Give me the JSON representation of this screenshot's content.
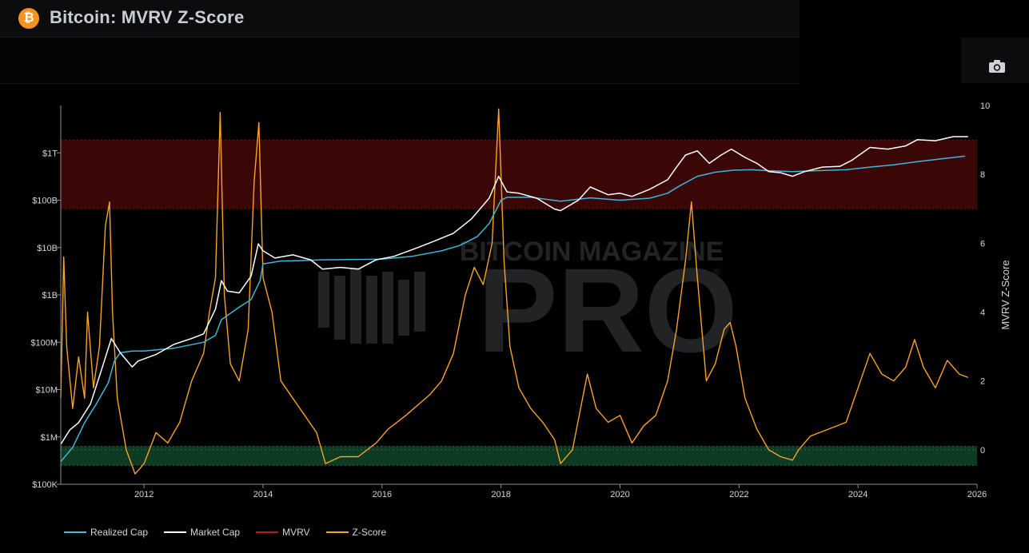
{
  "header": {
    "title": "Bitcoin: MVRV Z-Score",
    "logo_glyph": "₿",
    "logo_icon": "bitcoin-logo-icon",
    "camera_icon": "camera-icon"
  },
  "watermark": {
    "line1": "BITCOIN MAGAZINE",
    "line2": "PRO",
    "mark": "®"
  },
  "colors": {
    "realized": "#3fb7d8",
    "market": "#ffffff",
    "mvrv": "#b01e1e",
    "zscore": "#f7a229",
    "red_band": "#3a0606",
    "green_band": "#0d3a22"
  },
  "chart_data": {
    "type": "line",
    "title": "Bitcoin: MVRV Z-Score",
    "x_ticks": [
      "2012",
      "2014",
      "2016",
      "2018",
      "2020",
      "2022",
      "2024",
      "2026"
    ],
    "x_range": [
      2010.6,
      2026.0
    ],
    "y_left": {
      "scale": "log",
      "range": [
        100000,
        10000000000000
      ],
      "tick_values": [
        100000,
        1000000,
        10000000,
        100000000,
        1000000000,
        10000000000,
        100000000000,
        1000000000000
      ],
      "tick_labels": [
        "$100K",
        "$1M",
        "$10M",
        "$100M",
        "$1B",
        "$10B",
        "$100B",
        "$1T"
      ]
    },
    "y_right": {
      "label": "MVRV Z-Score",
      "range": [
        -1,
        10
      ],
      "tick_values": [
        0,
        2,
        4,
        6,
        8,
        10
      ],
      "tick_labels": [
        "0",
        "2",
        "4",
        "6",
        "8",
        "10"
      ]
    },
    "bands": [
      {
        "axis": "right",
        "from": 7,
        "to": 9,
        "color": "red"
      },
      {
        "axis": "right",
        "from": -0.45,
        "to": 0.1,
        "color": "green"
      }
    ],
    "legend": [
      "Realized Cap",
      "Market Cap",
      "MVRV",
      "Z-Score"
    ],
    "series": [
      {
        "name": "Realized Cap",
        "axis": "left",
        "x": [
          2010.6,
          2010.8,
          2011.0,
          2011.2,
          2011.4,
          2011.5,
          2011.6,
          2011.8,
          2012.0,
          2012.5,
          2013.0,
          2013.2,
          2013.3,
          2013.6,
          2013.8,
          2013.95,
          2014.0,
          2014.3,
          2014.6,
          2015.0,
          2015.5,
          2016.0,
          2016.5,
          2017.0,
          2017.3,
          2017.6,
          2017.8,
          2018.0,
          2018.1,
          2018.5,
          2019.0,
          2019.5,
          2020.0,
          2020.5,
          2020.8,
          2021.0,
          2021.3,
          2021.6,
          2021.9,
          2022.2,
          2022.5,
          2022.9,
          2023.3,
          2023.8,
          2024.2,
          2024.6,
          2025.0,
          2025.4,
          2025.8
        ],
        "values": [
          300000,
          600000,
          2000000,
          5000000,
          14000000,
          40000000,
          60000000,
          65000000,
          65000000,
          75000000,
          100000000,
          140000000,
          300000000,
          550000000,
          800000000,
          2000000000,
          4500000000,
          5200000000,
          5300000000,
          5500000000,
          5600000000,
          5700000000,
          6500000000,
          8500000000,
          11000000000,
          17000000000,
          32000000000,
          100000000000,
          115000000000,
          115000000000,
          95000000000,
          112000000000,
          100000000000,
          110000000000,
          140000000000,
          200000000000,
          320000000000,
          390000000000,
          430000000000,
          440000000000,
          420000000000,
          400000000000,
          420000000000,
          440000000000,
          500000000000,
          560000000000,
          650000000000,
          750000000000,
          850000000000
        ]
      },
      {
        "name": "Market Cap",
        "axis": "left",
        "x": [
          2010.6,
          2010.75,
          2010.9,
          2011.1,
          2011.3,
          2011.45,
          2011.6,
          2011.8,
          2011.9,
          2012.2,
          2012.5,
          2012.8,
          2013.0,
          2013.2,
          2013.3,
          2013.4,
          2013.6,
          2013.8,
          2013.92,
          2014.0,
          2014.2,
          2014.5,
          2014.8,
          2015.0,
          2015.3,
          2015.6,
          2015.9,
          2016.2,
          2016.6,
          2016.9,
          2017.2,
          2017.5,
          2017.8,
          2017.96,
          2018.1,
          2018.3,
          2018.6,
          2018.9,
          2019.0,
          2019.3,
          2019.5,
          2019.8,
          2020.0,
          2020.2,
          2020.5,
          2020.8,
          2020.95,
          2021.1,
          2021.3,
          2021.5,
          2021.7,
          2021.87,
          2022.1,
          2022.3,
          2022.5,
          2022.7,
          2022.9,
          2023.1,
          2023.4,
          2023.7,
          2023.9,
          2024.2,
          2024.5,
          2024.8,
          2025.0,
          2025.3,
          2025.6,
          2025.85
        ],
        "values": [
          700000,
          1400000,
          2000000,
          5000000,
          30000000,
          120000000,
          60000000,
          30000000,
          40000000,
          55000000,
          90000000,
          120000000,
          150000000,
          500000000,
          2000000000,
          1200000000,
          1100000000,
          2500000000,
          12000000000,
          8500000000,
          6000000000,
          7000000000,
          5500000000,
          3500000000,
          3800000000,
          3500000000,
          5500000000,
          6500000000,
          10000000000,
          14000000000,
          20000000000,
          40000000000,
          110000000000,
          320000000000,
          150000000000,
          140000000000,
          110000000000,
          65000000000,
          60000000000,
          100000000000,
          190000000000,
          130000000000,
          140000000000,
          120000000000,
          170000000000,
          270000000000,
          500000000000,
          900000000000,
          1100000000000,
          600000000000,
          900000000000,
          1200000000000,
          800000000000,
          600000000000,
          400000000000,
          380000000000,
          320000000000,
          400000000000,
          500000000000,
          520000000000,
          700000000000,
          1300000000000,
          1200000000000,
          1400000000000,
          1900000000000,
          1800000000000,
          2200000000000,
          2200000000000
        ]
      },
      {
        "name": "Z-Score",
        "axis": "right",
        "x": [
          2010.6,
          2010.65,
          2010.7,
          2010.8,
          2010.9,
          2011.0,
          2011.05,
          2011.15,
          2011.25,
          2011.35,
          2011.42,
          2011.47,
          2011.55,
          2011.7,
          2011.85,
          2012.0,
          2012.2,
          2012.4,
          2012.6,
          2012.8,
          2013.0,
          2013.1,
          2013.2,
          2013.28,
          2013.35,
          2013.45,
          2013.6,
          2013.75,
          2013.85,
          2013.93,
          2014.0,
          2014.15,
          2014.3,
          2014.5,
          2014.7,
          2014.9,
          2015.05,
          2015.3,
          2015.6,
          2015.9,
          2016.1,
          2016.4,
          2016.6,
          2016.8,
          2017.0,
          2017.2,
          2017.4,
          2017.55,
          2017.7,
          2017.85,
          2017.96,
          2018.05,
          2018.15,
          2018.3,
          2018.5,
          2018.7,
          2018.9,
          2019.0,
          2019.2,
          2019.45,
          2019.6,
          2019.8,
          2020.0,
          2020.2,
          2020.4,
          2020.6,
          2020.8,
          2020.95,
          2021.1,
          2021.2,
          2021.3,
          2021.45,
          2021.6,
          2021.75,
          2021.85,
          2021.95,
          2022.1,
          2022.3,
          2022.5,
          2022.7,
          2022.9,
          2023.0,
          2023.2,
          2023.5,
          2023.8,
          2024.0,
          2024.2,
          2024.4,
          2024.6,
          2024.8,
          2024.95,
          2025.1,
          2025.3,
          2025.5,
          2025.7,
          2025.85
        ],
        "values": [
          1.5,
          5.6,
          3.0,
          1.2,
          2.7,
          1.5,
          4.0,
          1.8,
          3.0,
          6.5,
          7.2,
          4.0,
          1.5,
          0.0,
          -0.7,
          -0.4,
          0.5,
          0.2,
          0.8,
          2.0,
          2.8,
          4.0,
          5.0,
          9.8,
          4.5,
          2.5,
          2.0,
          3.5,
          7.8,
          9.5,
          5.0,
          4.0,
          2.0,
          1.5,
          1.0,
          0.5,
          -0.4,
          -0.2,
          -0.2,
          0.2,
          0.6,
          1.0,
          1.3,
          1.6,
          2.0,
          2.8,
          4.5,
          5.3,
          4.8,
          6.0,
          9.9,
          5.5,
          3.0,
          1.8,
          1.2,
          0.8,
          0.3,
          -0.4,
          0.0,
          2.2,
          1.2,
          0.8,
          1.0,
          0.2,
          0.7,
          1.0,
          2.0,
          3.5,
          5.5,
          7.2,
          5.0,
          2.0,
          2.5,
          3.5,
          3.7,
          3.0,
          1.5,
          0.6,
          0.0,
          -0.2,
          -0.3,
          0.0,
          0.4,
          0.6,
          0.8,
          1.8,
          2.8,
          2.2,
          2.0,
          2.4,
          3.2,
          2.4,
          1.8,
          2.6,
          2.2,
          2.1
        ]
      }
    ]
  }
}
